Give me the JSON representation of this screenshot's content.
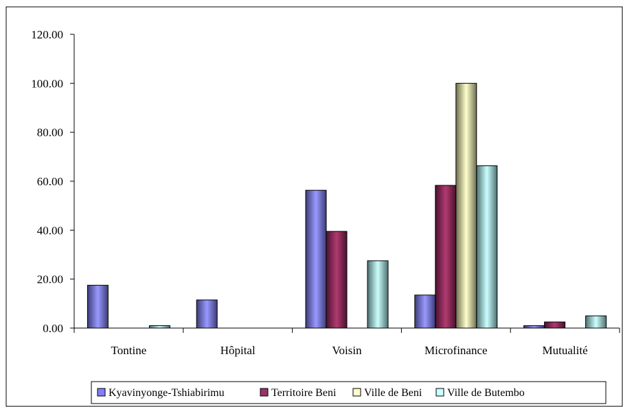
{
  "chart_data": {
    "type": "bar",
    "categories": [
      "Tontine",
      "Hôpital",
      "Voisin",
      "Microfinance",
      "Mutualité"
    ],
    "series": [
      {
        "name": "Kyavinyonge-Tshiabirimu",
        "values": [
          17.5,
          11.5,
          56.3,
          13.5,
          1.0
        ],
        "color": "#8080ff"
      },
      {
        "name": "Territoire Beni",
        "values": [
          0,
          0,
          39.5,
          58.3,
          2.5
        ],
        "color": "#993366"
      },
      {
        "name": "Ville de Beni",
        "values": [
          0,
          0,
          0,
          100.0,
          0
        ],
        "color": "#ffffcc"
      },
      {
        "name": "Ville de Butembo",
        "values": [
          1.0,
          0,
          27.5,
          66.3,
          5.0
        ],
        "color": "#ccffff"
      }
    ],
    "ylim": [
      0,
      120
    ],
    "yticks": [
      "0.00",
      "20.00",
      "40.00",
      "60.00",
      "80.00",
      "100.00",
      "120.00"
    ],
    "legend_position": "bottom",
    "grid": false
  }
}
